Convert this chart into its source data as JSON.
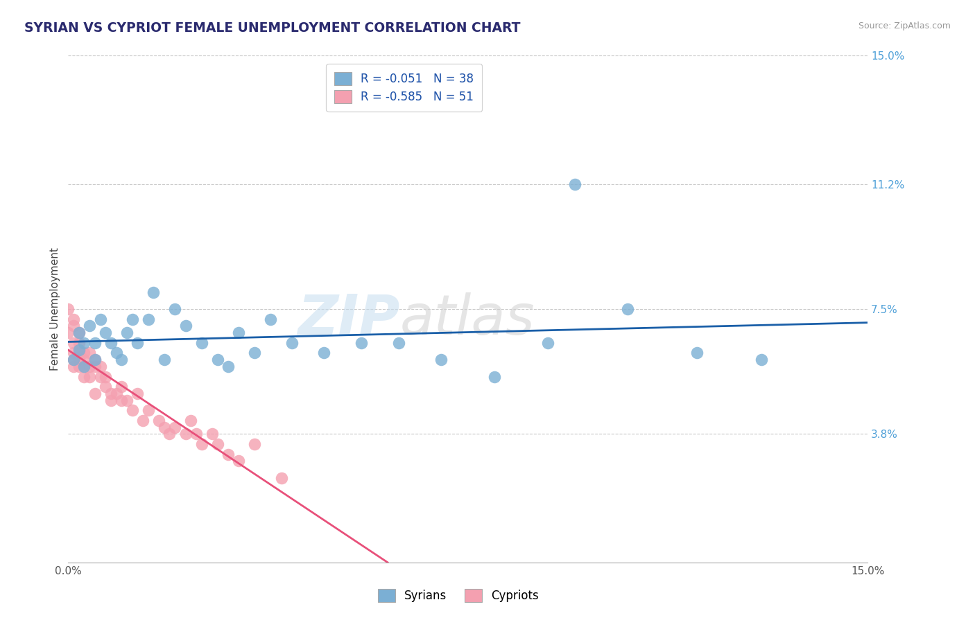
{
  "title": "SYRIAN VS CYPRIOT FEMALE UNEMPLOYMENT CORRELATION CHART",
  "source": "Source: ZipAtlas.com",
  "xlabel": "",
  "ylabel": "Female Unemployment",
  "xlim": [
    0.0,
    0.15
  ],
  "ylim": [
    0.0,
    0.15
  ],
  "ytick_vals_right": [
    0.15,
    0.112,
    0.075,
    0.038
  ],
  "ytick_labels_right": [
    "15.0%",
    "11.2%",
    "7.5%",
    "3.8%"
  ],
  "background_color": "#ffffff",
  "grid_color": "#c8c8c8",
  "syrians_color": "#7bafd4",
  "cypriots_color": "#f4a0b0",
  "syrians_line_color": "#1a5fa8",
  "cypriots_line_color": "#e8507a",
  "legend_syrian_label": "R = -0.051   N = 38",
  "legend_cypriot_label": "R = -0.585   N = 51",
  "legend_syrians": "Syrians",
  "legend_cypriots": "Cypriots",
  "watermark_zip": "ZIP",
  "watermark_atlas": "atlas",
  "syrians_x": [
    0.001,
    0.002,
    0.002,
    0.003,
    0.003,
    0.004,
    0.005,
    0.005,
    0.006,
    0.007,
    0.008,
    0.009,
    0.01,
    0.011,
    0.012,
    0.013,
    0.015,
    0.016,
    0.018,
    0.02,
    0.022,
    0.025,
    0.028,
    0.03,
    0.032,
    0.035,
    0.038,
    0.042,
    0.048,
    0.055,
    0.062,
    0.07,
    0.08,
    0.09,
    0.095,
    0.105,
    0.118,
    0.13
  ],
  "syrians_y": [
    0.06,
    0.063,
    0.068,
    0.058,
    0.065,
    0.07,
    0.06,
    0.065,
    0.072,
    0.068,
    0.065,
    0.062,
    0.06,
    0.068,
    0.072,
    0.065,
    0.072,
    0.08,
    0.06,
    0.075,
    0.07,
    0.065,
    0.06,
    0.058,
    0.068,
    0.062,
    0.072,
    0.065,
    0.062,
    0.065,
    0.065,
    0.06,
    0.055,
    0.065,
    0.112,
    0.075,
    0.062,
    0.06
  ],
  "cypriots_x": [
    0.0,
    0.0,
    0.001,
    0.001,
    0.001,
    0.001,
    0.001,
    0.001,
    0.002,
    0.002,
    0.002,
    0.002,
    0.002,
    0.003,
    0.003,
    0.003,
    0.003,
    0.004,
    0.004,
    0.004,
    0.005,
    0.005,
    0.005,
    0.006,
    0.006,
    0.007,
    0.007,
    0.008,
    0.008,
    0.009,
    0.01,
    0.01,
    0.011,
    0.012,
    0.013,
    0.014,
    0.015,
    0.017,
    0.018,
    0.019,
    0.02,
    0.022,
    0.023,
    0.024,
    0.025,
    0.027,
    0.028,
    0.03,
    0.032,
    0.035,
    0.04
  ],
  "cypriots_y": [
    0.075,
    0.068,
    0.072,
    0.065,
    0.06,
    0.07,
    0.062,
    0.058,
    0.068,
    0.062,
    0.058,
    0.06,
    0.065,
    0.062,
    0.055,
    0.06,
    0.058,
    0.058,
    0.062,
    0.055,
    0.058,
    0.06,
    0.05,
    0.055,
    0.058,
    0.052,
    0.055,
    0.05,
    0.048,
    0.05,
    0.048,
    0.052,
    0.048,
    0.045,
    0.05,
    0.042,
    0.045,
    0.042,
    0.04,
    0.038,
    0.04,
    0.038,
    0.042,
    0.038,
    0.035,
    0.038,
    0.035,
    0.032,
    0.03,
    0.035,
    0.025
  ]
}
